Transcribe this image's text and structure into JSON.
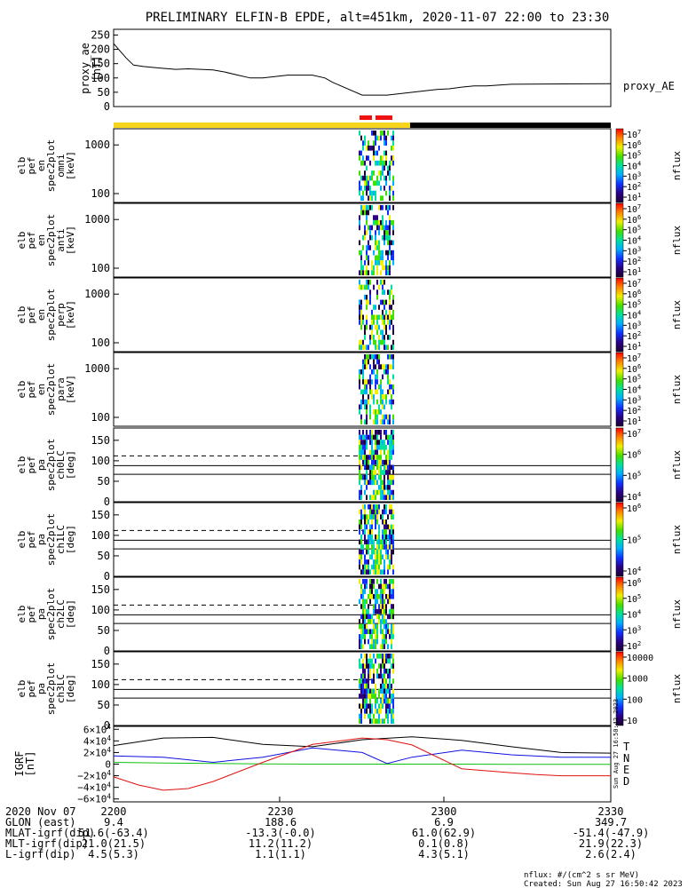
{
  "title": "PRELIMINARY ELFIN-B EPDE, alt=451km, 2020-11-07 22:00 to 23:30",
  "colors": {
    "bar_yellow": "#f7d51c",
    "bar_black": "#000000",
    "bar_red": "#f01010",
    "n_blue": "#1010e0",
    "e_green": "#10c010",
    "d_red": "#e01010",
    "t_black": "#000000"
  },
  "chart_data": [
    {
      "type": "line",
      "name": "proxy_ae",
      "ylabel_lines": [
        "proxy_ae",
        "[nT]"
      ],
      "legend": "proxy_AE",
      "ylim": [
        0,
        270
      ],
      "yticks": [
        "0",
        "50",
        "100",
        "150",
        "200",
        "250"
      ],
      "x": [
        0,
        2,
        5,
        8,
        12,
        18,
        25,
        30,
        40,
        45,
        50,
        55,
        60,
        70,
        80,
        85,
        88,
        92,
        100,
        110,
        130,
        135,
        140,
        145,
        150,
        160,
        200
      ],
      "values": [
        220,
        200,
        170,
        145,
        140,
        135,
        130,
        132,
        128,
        120,
        110,
        100,
        100,
        110,
        110,
        100,
        85,
        70,
        40,
        40,
        60,
        62,
        68,
        72,
        72,
        78,
        80
      ]
    },
    {
      "type": "heatmap",
      "name": "omni",
      "ylabel_lines": [
        "elb",
        "pef",
        "en",
        "spec2plot",
        "omni",
        "[keV]"
      ],
      "yticks": [
        "100",
        "1000"
      ],
      "cbar_ticks": [
        "101",
        "102",
        "103",
        "104",
        "105",
        "106",
        "107"
      ],
      "cbar_label": "nflux"
    },
    {
      "type": "heatmap",
      "name": "anti",
      "ylabel_lines": [
        "elb",
        "pef",
        "en",
        "spec2plot",
        "anti",
        "[keV]"
      ],
      "yticks": [
        "100",
        "1000"
      ],
      "cbar_ticks": [
        "101",
        "102",
        "103",
        "104",
        "105",
        "106",
        "107"
      ],
      "cbar_label": "nflux"
    },
    {
      "type": "heatmap",
      "name": "perp",
      "ylabel_lines": [
        "elb",
        "pef",
        "en",
        "spec2plot",
        "perp",
        "[keV]"
      ],
      "yticks": [
        "100",
        "1000"
      ],
      "cbar_ticks": [
        "101",
        "102",
        "103",
        "104",
        "105",
        "106",
        "107"
      ],
      "cbar_label": "nflux"
    },
    {
      "type": "heatmap",
      "name": "para",
      "ylabel_lines": [
        "elb",
        "pef",
        "en",
        "spec2plot",
        "para",
        "[keV]"
      ],
      "yticks": [
        "100",
        "1000"
      ],
      "cbar_ticks": [
        "101",
        "102",
        "103",
        "104",
        "105",
        "106",
        "107"
      ],
      "cbar_label": "nflux"
    },
    {
      "type": "heatmap",
      "name": "ch0LC",
      "ylabel_lines": [
        "elb",
        "pef",
        "pa",
        "spec2plot",
        "ch0LC",
        "[deg]"
      ],
      "yticks": [
        "0",
        "50",
        "100",
        "150"
      ],
      "ylim": [
        0,
        180
      ],
      "dashed_line": 112,
      "solid_lines": [
        88,
        67
      ],
      "cbar_ticks": [
        "104",
        "105",
        "106",
        "107"
      ],
      "cbar_label": "nflux"
    },
    {
      "type": "heatmap",
      "name": "ch1LC",
      "ylabel_lines": [
        "elb",
        "pef",
        "pa",
        "spec2plot",
        "ch1LC",
        "[deg]"
      ],
      "yticks": [
        "0",
        "50",
        "100",
        "150"
      ],
      "ylim": [
        0,
        180
      ],
      "dashed_line": 112,
      "solid_lines": [
        88,
        67
      ],
      "cbar_ticks": [
        "104",
        "105",
        "106"
      ],
      "cbar_label": "nflux"
    },
    {
      "type": "heatmap",
      "name": "ch2LC",
      "ylabel_lines": [
        "elb",
        "pef",
        "pa",
        "spec2plot",
        "ch2LC",
        "[deg]"
      ],
      "yticks": [
        "0",
        "50",
        "100",
        "150"
      ],
      "ylim": [
        0,
        180
      ],
      "dashed_line": 112,
      "solid_lines": [
        88,
        67
      ],
      "cbar_ticks": [
        "102",
        "103",
        "104",
        "105",
        "106"
      ],
      "cbar_label": "nflux"
    },
    {
      "type": "heatmap",
      "name": "ch3LC",
      "ylabel_lines": [
        "elb",
        "pef",
        "pa",
        "spec2plot",
        "ch3LC",
        "[deg]"
      ],
      "yticks": [
        "0",
        "50",
        "100",
        "150"
      ],
      "ylim": [
        0,
        180
      ],
      "dashed_line": 112,
      "solid_lines": [
        88,
        67
      ],
      "cbar_ticks": [
        "10",
        "100",
        "1000",
        "10000"
      ],
      "cbar_label": "nflux"
    },
    {
      "type": "line",
      "name": "IGRF",
      "ylabel_lines": [
        "IGRF",
        "[nT]"
      ],
      "yticks": [
        "6×104",
        "4×104",
        "2×104",
        "0",
        "−2×104",
        "−4×104",
        "−6×104"
      ],
      "ylim": [
        -65000,
        65000
      ],
      "legend": [
        "T",
        "N",
        "E",
        "D"
      ],
      "series": [
        {
          "name": "T",
          "x": [
            0,
            20,
            40,
            60,
            80,
            100,
            120,
            140,
            160,
            180,
            200
          ],
          "values": [
            32000,
            45000,
            46000,
            34000,
            30000,
            42000,
            47000,
            41000,
            30000,
            20000,
            19000
          ]
        },
        {
          "name": "N",
          "x": [
            0,
            20,
            40,
            60,
            80,
            100,
            110,
            120,
            140,
            160,
            180,
            200
          ],
          "values": [
            14000,
            12000,
            3000,
            12000,
            28000,
            20000,
            1000,
            12000,
            24000,
            16000,
            12000,
            12000
          ]
        },
        {
          "name": "E",
          "x": [
            0,
            20,
            40,
            60,
            80,
            100,
            120,
            140,
            160,
            180,
            200
          ],
          "values": [
            3000,
            2000,
            1000,
            500,
            0,
            0,
            0,
            0,
            -500,
            -500,
            -500
          ]
        },
        {
          "name": "D",
          "x": [
            0,
            10,
            20,
            30,
            40,
            60,
            80,
            100,
            110,
            120,
            140,
            160,
            170,
            180,
            200
          ],
          "values": [
            -22000,
            -36000,
            -45000,
            -42000,
            -30000,
            3000,
            34000,
            45000,
            42000,
            33000,
            -8000,
            -15000,
            -18000,
            -20000,
            -20000
          ]
        }
      ]
    }
  ],
  "x_axis": {
    "ticks": [
      "2200",
      "2230",
      "2300",
      "2330"
    ]
  },
  "info_rows": [
    {
      "label": "2020 Nov 07",
      "values": [
        "2200",
        "2230",
        "2300",
        "2330"
      ]
    },
    {
      "label": "GLON (east)",
      "values": [
        "9.4",
        "188.6",
        "6.9",
        "349.7"
      ]
    },
    {
      "label": "MLAT-igrf(dip)",
      "values": [
        "51.6(-63.4)",
        "-13.3(-0.0)",
        "61.0(62.9)",
        "-51.4(-47.9)"
      ]
    },
    {
      "label": "MLT-igrf(dip)",
      "values": [
        "21.0(21.5)",
        "11.2(11.2)",
        "0.1(0.8)",
        "21.9(22.3)"
      ]
    },
    {
      "label": "L-igrf(dip)",
      "values": [
        "4.5(5.3)",
        "1.1(1.1)",
        "4.3(5.1)",
        "2.6(2.4)"
      ]
    }
  ],
  "footer": {
    "units": "nflux: #/(cm^2 s sr MeV)",
    "created": "Created: Sun Aug 27 16:50:42 2023"
  },
  "side_stamp": "Sun Aug 27 16:50:42 2023"
}
